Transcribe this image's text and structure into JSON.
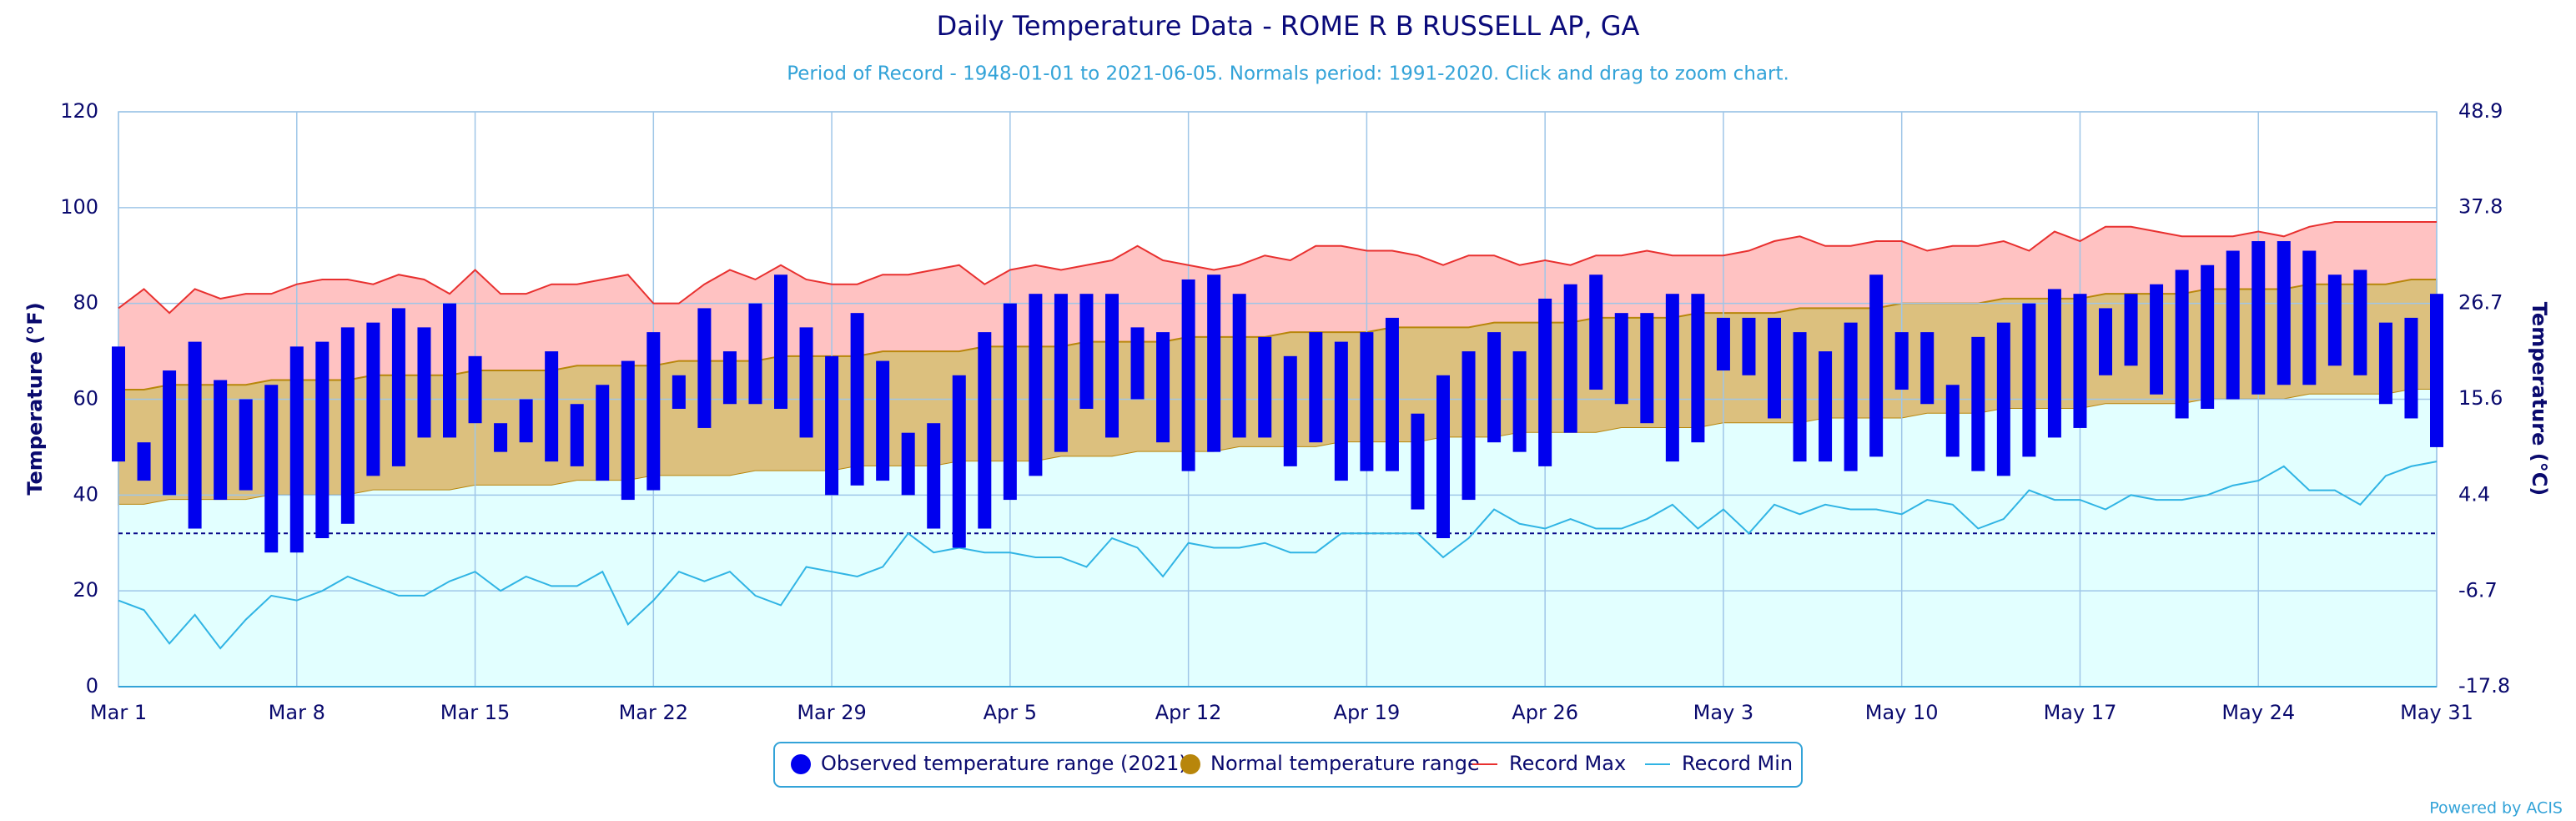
{
  "chart_data": {
    "type": "range",
    "title": "Daily Temperature Data - ROME R B RUSSELL AP, GA",
    "subtitle": "Period of Record - 1948-01-01 to 2021-06-05. Normals period: 1991-2020. Click and drag to zoom chart.",
    "y_label": "Temperature (°F)",
    "y2_label": "Temperature (°C)",
    "credits": "Powered by ACIS",
    "categories": [
      "Mar 1",
      null,
      null,
      null,
      null,
      null,
      null,
      "Mar 8",
      null,
      null,
      null,
      null,
      null,
      null,
      "Mar 15",
      null,
      null,
      null,
      null,
      null,
      null,
      "Mar 22",
      null,
      null,
      null,
      null,
      null,
      null,
      "Mar 29",
      null,
      null,
      null,
      null,
      null,
      null,
      "Apr 5",
      null,
      null,
      null,
      null,
      null,
      null,
      "Apr 12",
      null,
      null,
      null,
      null,
      null,
      null,
      "Apr 19",
      null,
      null,
      null,
      null,
      null,
      null,
      "Apr 26",
      null,
      null,
      null,
      null,
      null,
      null,
      "May 3",
      null,
      null,
      null,
      null,
      null,
      null,
      "May 10",
      null,
      null,
      null,
      null,
      null,
      null,
      "May 17",
      null,
      null,
      null,
      null,
      null,
      null,
      "May 24",
      null,
      null,
      null,
      null,
      null,
      null,
      "May 31"
    ],
    "ylim": [
      0,
      120
    ],
    "yticks": [
      0,
      20,
      40,
      60,
      80,
      100,
      120
    ],
    "y2lim": [
      -17.8,
      48.9
    ],
    "y2ticks": [
      -17.8,
      -6.7,
      4.4,
      15.6,
      26.7,
      37.8,
      48.9
    ],
    "plot_line": 32,
    "grid": true,
    "legend": "bottom",
    "series": [
      {
        "name": "Observed temperature range (2021)",
        "type": "range_bar",
        "color": "#0000ee",
        "low": [
          47,
          43,
          40,
          33,
          39,
          41,
          28,
          28,
          31,
          34,
          44,
          46,
          52,
          52,
          55,
          49,
          51,
          47,
          46,
          43,
          39,
          41,
          58,
          54,
          59,
          59,
          58,
          52,
          40,
          42,
          43,
          40,
          33,
          29,
          33,
          39,
          44,
          49,
          58,
          52,
          60,
          51,
          45,
          49,
          52,
          52,
          46,
          51,
          43,
          45,
          45,
          37,
          31,
          39,
          51,
          49,
          46,
          53,
          62,
          59,
          55,
          47,
          51,
          66,
          65,
          56,
          47,
          47,
          45,
          48,
          62,
          59,
          48,
          45,
          44,
          48,
          52,
          54,
          65,
          67,
          61,
          56,
          58,
          60,
          61,
          63,
          63,
          67,
          65,
          59,
          56,
          50
        ],
        "high": [
          71,
          51,
          66,
          72,
          64,
          60,
          63,
          71,
          72,
          75,
          76,
          79,
          75,
          80,
          69,
          55,
          60,
          70,
          59,
          63,
          68,
          74,
          65,
          79,
          70,
          80,
          86,
          75,
          69,
          78,
          68,
          53,
          55,
          65,
          74,
          80,
          82,
          82,
          82,
          82,
          75,
          74,
          85,
          86,
          82,
          73,
          69,
          74,
          72,
          74,
          77,
          57,
          65,
          70,
          74,
          70,
          81,
          84,
          86,
          78,
          78,
          82,
          82,
          77,
          77,
          77,
          74,
          70,
          76,
          86,
          74,
          74,
          63,
          73,
          76,
          80,
          83,
          82,
          79,
          82,
          84,
          87,
          88,
          91,
          93,
          93,
          91,
          86,
          87,
          76,
          77,
          82
        ]
      },
      {
        "name": "Normal temperature range",
        "type": "range_area",
        "color": "#b8860b",
        "fill": "#dcc07e",
        "low": [
          38,
          38,
          39,
          39,
          39,
          39,
          40,
          40,
          40,
          40,
          41,
          41,
          41,
          41,
          42,
          42,
          42,
          42,
          43,
          43,
          43,
          44,
          44,
          44,
          44,
          45,
          45,
          45,
          45,
          46,
          46,
          46,
          46,
          47,
          47,
          47,
          47,
          48,
          48,
          48,
          49,
          49,
          49,
          49,
          50,
          50,
          50,
          50,
          51,
          51,
          51,
          51,
          52,
          52,
          52,
          53,
          53,
          53,
          53,
          54,
          54,
          54,
          54,
          55,
          55,
          55,
          55,
          56,
          56,
          56,
          56,
          57,
          57,
          57,
          58,
          58,
          58,
          58,
          59,
          59,
          59,
          59,
          60,
          60,
          60,
          60,
          61,
          61,
          61,
          61,
          62,
          62
        ],
        "high": [
          62,
          62,
          63,
          63,
          63,
          63,
          64,
          64,
          64,
          64,
          65,
          65,
          65,
          65,
          66,
          66,
          66,
          66,
          67,
          67,
          67,
          67,
          68,
          68,
          68,
          68,
          69,
          69,
          69,
          69,
          70,
          70,
          70,
          70,
          71,
          71,
          71,
          71,
          72,
          72,
          72,
          72,
          73,
          73,
          73,
          73,
          74,
          74,
          74,
          74,
          75,
          75,
          75,
          75,
          76,
          76,
          76,
          76,
          77,
          77,
          77,
          77,
          78,
          78,
          78,
          78,
          79,
          79,
          79,
          79,
          80,
          80,
          80,
          80,
          81,
          81,
          81,
          81,
          82,
          82,
          82,
          82,
          83,
          83,
          83,
          83,
          84,
          84,
          84,
          84,
          85,
          85
        ]
      },
      {
        "name": "Record Max",
        "type": "line",
        "color": "#e8302f",
        "fill": "#ffc2c2",
        "values": [
          79,
          83,
          78,
          83,
          81,
          82,
          82,
          84,
          85,
          85,
          84,
          86,
          85,
          82,
          87,
          82,
          82,
          84,
          84,
          85,
          86,
          80,
          80,
          84,
          87,
          85,
          88,
          85,
          84,
          84,
          86,
          86,
          87,
          88,
          84,
          87,
          88,
          87,
          88,
          89,
          92,
          89,
          88,
          87,
          88,
          90,
          89,
          92,
          92,
          91,
          91,
          90,
          88,
          90,
          90,
          88,
          89,
          88,
          90,
          90,
          91,
          90,
          90,
          90,
          91,
          93,
          94,
          92,
          92,
          93,
          93,
          91,
          92,
          92,
          93,
          91,
          95,
          93,
          96,
          96,
          95,
          94,
          94,
          94,
          95,
          94,
          96,
          97,
          97,
          97,
          97,
          97
        ]
      },
      {
        "name": "Record Min",
        "type": "line",
        "color": "#30b4e4",
        "fill": "#e2ffff",
        "values": [
          18,
          16,
          9,
          15,
          8,
          14,
          19,
          18,
          20,
          23,
          21,
          19,
          19,
          22,
          24,
          20,
          23,
          21,
          21,
          24,
          13,
          18,
          24,
          22,
          24,
          19,
          17,
          25,
          24,
          23,
          25,
          32,
          28,
          29,
          28,
          28,
          27,
          27,
          25,
          31,
          29,
          23,
          30,
          29,
          29,
          30,
          28,
          28,
          32,
          32,
          32,
          32,
          27,
          31,
          37,
          34,
          33,
          35,
          33,
          33,
          35,
          38,
          33,
          37,
          32,
          38,
          36,
          38,
          37,
          37,
          36,
          39,
          38,
          33,
          35,
          41,
          39,
          39,
          37,
          40,
          39,
          39,
          40,
          42,
          43,
          46,
          41,
          41,
          38,
          44,
          46,
          47
        ]
      }
    ]
  }
}
